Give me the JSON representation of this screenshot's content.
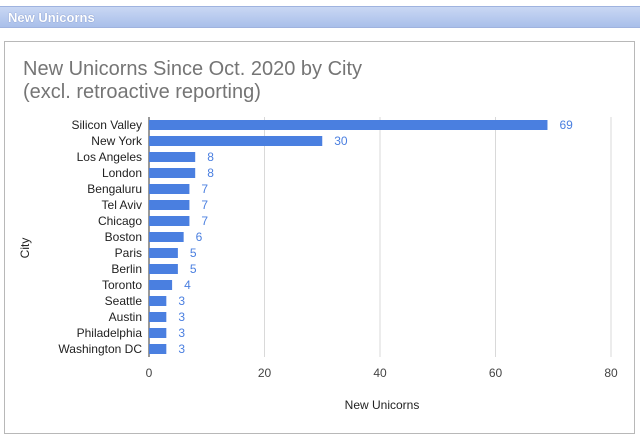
{
  "header": {
    "title": "New Unicorns"
  },
  "chart_data": {
    "type": "bar",
    "orientation": "horizontal",
    "title": "New Unicorns Since Oct. 2020 by City\n(excl. retroactive reporting)",
    "xlabel": "New Unicorns",
    "ylabel": "City",
    "xlim": [
      0,
      80
    ],
    "xticks": [
      0,
      20,
      40,
      60,
      80
    ],
    "grid": true,
    "bar_color": "#4a7fe0",
    "label_color": "#4a7fe0",
    "categories": [
      "Silicon Valley",
      "New York",
      "Los Angeles",
      "London",
      "Bengaluru",
      "Tel Aviv",
      "Chicago",
      "Boston",
      "Paris",
      "Berlin",
      "Toronto",
      "Seattle",
      "Austin",
      "Philadelphia",
      "Washington DC"
    ],
    "values": [
      69,
      30,
      8,
      8,
      7,
      7,
      7,
      6,
      5,
      5,
      4,
      3,
      3,
      3,
      3
    ]
  }
}
